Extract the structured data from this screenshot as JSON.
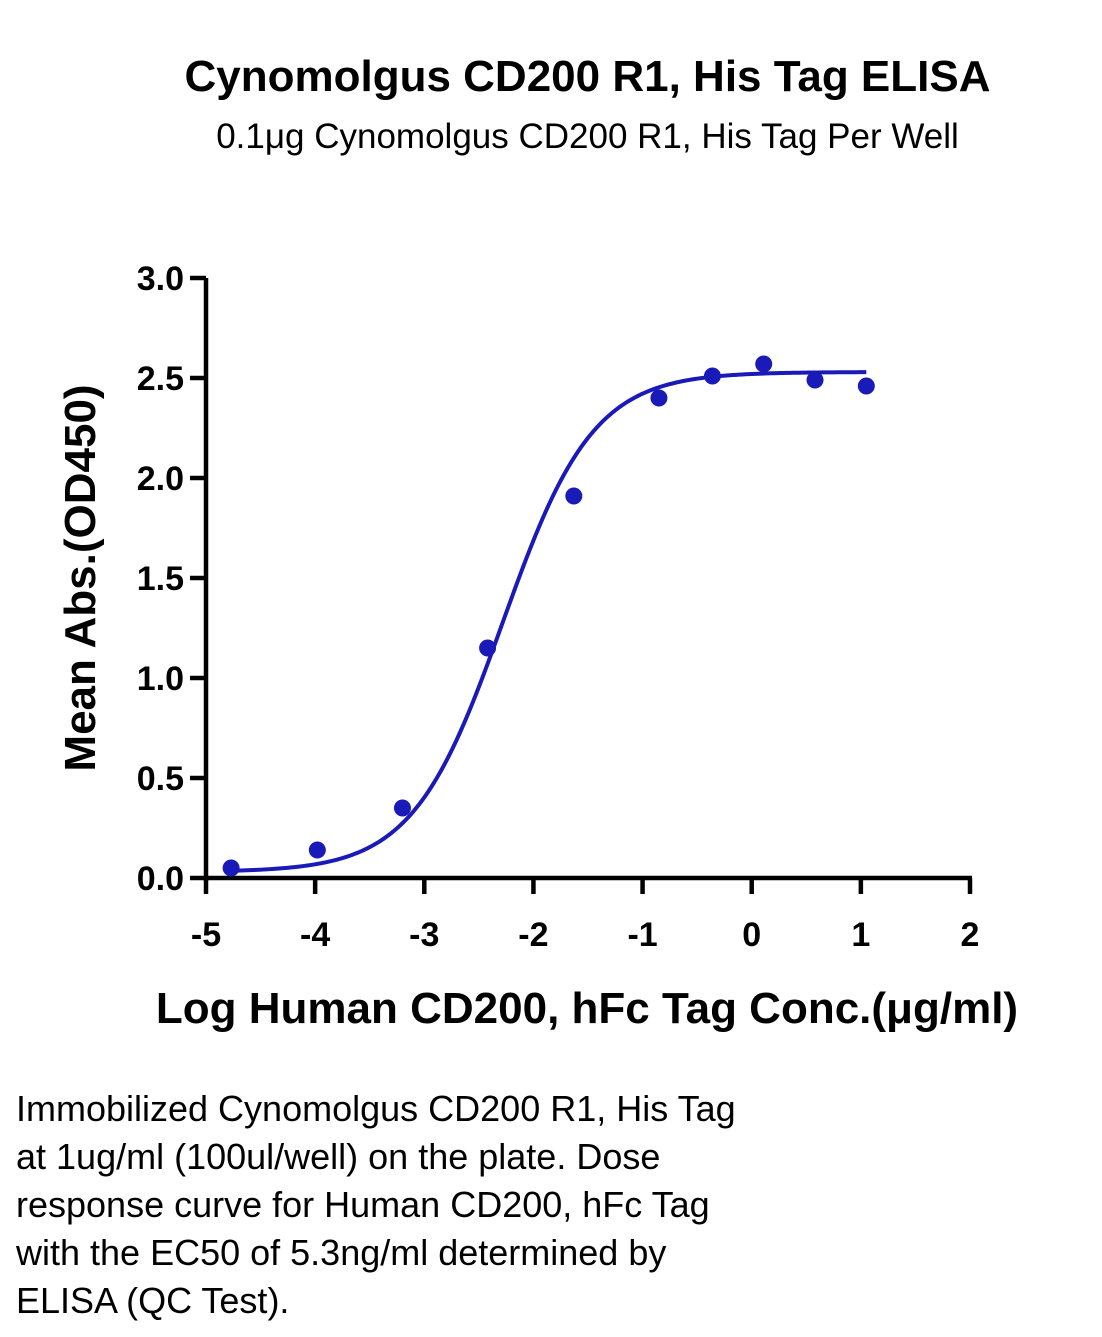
{
  "chart_data": {
    "type": "scatter",
    "title": "Cynomolgus CD200 R1, His Tag ELISA",
    "subtitle": "0.1μg Cynomolgus CD200 R1, His Tag Per Well",
    "xlabel": "Log Human CD200, hFc Tag Conc.(μg/ml)",
    "ylabel": "Mean Abs.(OD450)",
    "xlim": [
      -5,
      2
    ],
    "ylim": [
      0,
      3.0
    ],
    "x_ticks": [
      "-5",
      "-4",
      "-3",
      "-2",
      "-1",
      "0",
      "1",
      "2"
    ],
    "x_tick_values": [
      -5,
      -4,
      -3,
      -2,
      -1,
      0,
      1,
      2
    ],
    "y_ticks": [
      "0.0",
      "0.5",
      "1.0",
      "1.5",
      "2.0",
      "2.5",
      "3.0"
    ],
    "y_tick_values": [
      0,
      0.5,
      1.0,
      1.5,
      2.0,
      2.5,
      3.0
    ],
    "grid": false,
    "color": "#1a1ab8",
    "series": [
      {
        "points": [
          [
            -4.77,
            0.05
          ],
          [
            -3.98,
            0.14
          ],
          [
            -3.2,
            0.35
          ],
          [
            -2.42,
            1.15
          ],
          [
            -1.63,
            1.91
          ],
          [
            -0.85,
            2.4
          ],
          [
            -0.36,
            2.51
          ],
          [
            0.11,
            2.57
          ],
          [
            0.58,
            2.49
          ],
          [
            1.05,
            2.46
          ]
        ],
        "fit": {
          "model": "4PL",
          "bottom": 0.03,
          "top": 2.53,
          "log_ec50": -2.28,
          "hill": 1.05,
          "x_range": [
            -4.77,
            1.05
          ]
        }
      }
    ]
  },
  "caption_lines": [
    "Immobilized Cynomolgus CD200 R1, His Tag",
    "at 1ug/ml (100ul/well) on the plate. Dose",
    "response curve for Human CD200, hFc Tag",
    "with the EC50 of 5.3ng/ml determined by",
    "ELISA (QC Test)."
  ]
}
